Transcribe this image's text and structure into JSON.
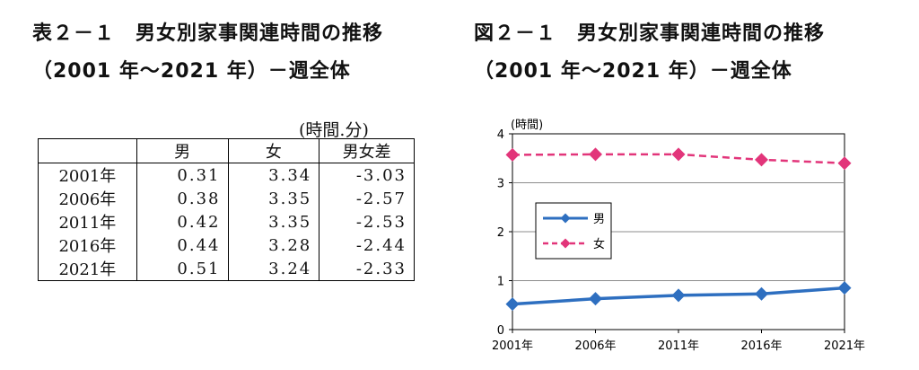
{
  "table": {
    "title_line1": "表２－１　男女別家事関連時間の推移",
    "title_line2": "（2001 年～2021 年）－週全体",
    "unit": "(時間.分)",
    "headers": [
      "",
      "男",
      "女",
      "男女差"
    ],
    "rows": [
      [
        "2001年",
        "0.31",
        "3.34",
        "-3.03"
      ],
      [
        "2006年",
        "0.38",
        "3.35",
        "-2.57"
      ],
      [
        "2011年",
        "0.42",
        "3.35",
        "-2.53"
      ],
      [
        "2016年",
        "0.44",
        "3.28",
        "-2.44"
      ],
      [
        "2021年",
        "0.51",
        "3.24",
        "-2.33"
      ]
    ]
  },
  "figure": {
    "title_line1": "図２－１　男女別家事関連時間の推移",
    "title_line2": "（2001 年～2021 年）－週全体"
  },
  "chart_data": {
    "type": "line",
    "categories": [
      "2001年",
      "2006年",
      "2011年",
      "2016年",
      "2021年"
    ],
    "series": [
      {
        "name": "男",
        "values": [
          0.52,
          0.63,
          0.7,
          0.73,
          0.85
        ],
        "color": "#2e6fc0",
        "style": "solid",
        "marker": "diamond"
      },
      {
        "name": "女",
        "values": [
          3.57,
          3.58,
          3.58,
          3.47,
          3.4
        ],
        "color": "#e2357a",
        "style": "dashed",
        "marker": "diamond"
      }
    ],
    "title": "",
    "xlabel": "",
    "ylabel": "(時間)",
    "ylim": [
      0,
      4
    ],
    "yticks": [
      0,
      1,
      2,
      3,
      4
    ],
    "grid": true,
    "legend": "middle-left"
  }
}
